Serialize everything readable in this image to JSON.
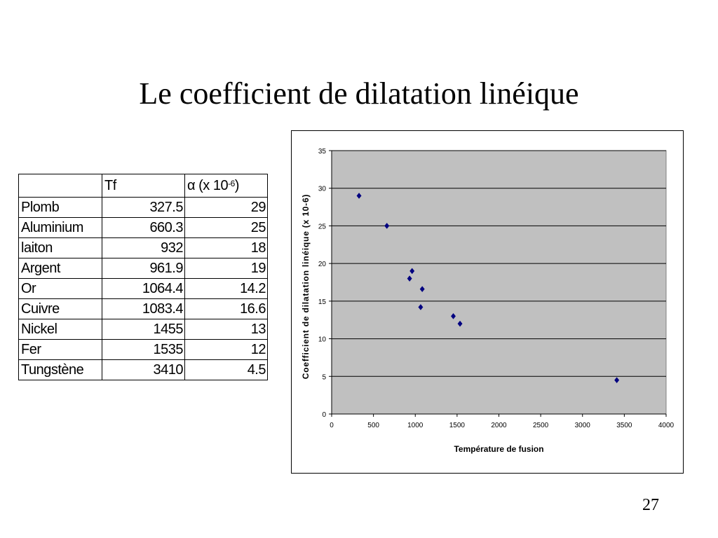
{
  "slide": {
    "title": "Le coefficient de dilatation linéique",
    "page_number": "27"
  },
  "table": {
    "headers": [
      "",
      "Tf",
      "α (x 10",
      "-6",
      ")"
    ],
    "rows": [
      {
        "name": "Plomb",
        "tf": "327.5",
        "alpha": "29"
      },
      {
        "name": "Aluminium",
        "tf": "660.3",
        "alpha": "25"
      },
      {
        "name": "laiton",
        "tf": "932",
        "alpha": "18"
      },
      {
        "name": "Argent",
        "tf": "961.9",
        "alpha": "19"
      },
      {
        "name": "Or",
        "tf": "1064.4",
        "alpha": "14.2"
      },
      {
        "name": "Cuivre",
        "tf": "1083.4",
        "alpha": "16.6"
      },
      {
        "name": "Nickel",
        "tf": "1455",
        "alpha": "13"
      },
      {
        "name": "Fer",
        "tf": "1535",
        "alpha": "12"
      },
      {
        "name": "Tungstène",
        "tf": "3410",
        "alpha": "4.5"
      }
    ]
  },
  "chart_data": {
    "type": "scatter",
    "title": "",
    "xlabel": "Température de fusion",
    "ylabel": "Coefficient de dilatation linéique (x 10-6)",
    "xlim": [
      0,
      4000
    ],
    "ylim": [
      0,
      35
    ],
    "xticks": [
      0,
      500,
      1000,
      1500,
      2000,
      2500,
      3000,
      3500,
      4000
    ],
    "yticks": [
      0,
      5,
      10,
      15,
      20,
      25,
      30,
      35
    ],
    "grid": "horizontal",
    "legend": "none",
    "plot_background": "#c0c0c0",
    "marker_color": "#000080",
    "marker": "diamond",
    "series": [
      {
        "points": [
          {
            "x": 327.5,
            "y": 29
          },
          {
            "x": 660.3,
            "y": 25
          },
          {
            "x": 932,
            "y": 18
          },
          {
            "x": 961.9,
            "y": 19
          },
          {
            "x": 1064.4,
            "y": 14.2
          },
          {
            "x": 1083.4,
            "y": 16.6
          },
          {
            "x": 1455,
            "y": 13
          },
          {
            "x": 1535,
            "y": 12
          },
          {
            "x": 3410,
            "y": 4.5
          }
        ]
      }
    ]
  }
}
